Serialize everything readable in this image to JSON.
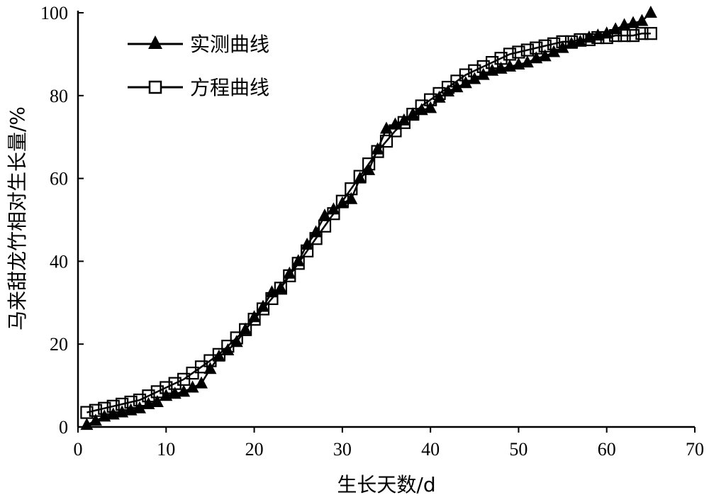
{
  "chart_data": {
    "type": "line",
    "xlabel": "生长天数/d",
    "ylabel": "马来甜龙竹相对生长量/%",
    "xlim": [
      0,
      70
    ],
    "ylim": [
      0,
      100
    ],
    "xticks": [
      "0",
      "10",
      "20",
      "30",
      "40",
      "50",
      "60",
      "70"
    ],
    "yticks": [
      "0",
      "20",
      "40",
      "60",
      "80",
      "100"
    ],
    "legend_position": "top-left",
    "grid": false,
    "series": [
      {
        "name": "实测曲线",
        "marker": "filled-triangle",
        "color": "#000000",
        "x": [
          1,
          2,
          3,
          4,
          5,
          6,
          7,
          8,
          9,
          10,
          11,
          12,
          13,
          14,
          15,
          16,
          17,
          18,
          19,
          20,
          21,
          22,
          23,
          24,
          25,
          26,
          27,
          28,
          29,
          30,
          31,
          32,
          33,
          34,
          35,
          36,
          37,
          38,
          39,
          40,
          41,
          42,
          43,
          44,
          45,
          46,
          47,
          48,
          49,
          50,
          51,
          52,
          53,
          54,
          55,
          56,
          57,
          58,
          59,
          60,
          61,
          62,
          63,
          64,
          65
        ],
        "values": [
          0.5,
          1.5,
          2.5,
          3,
          3.5,
          4,
          4.5,
          5.5,
          6,
          7.5,
          8,
          8.5,
          9.5,
          10.5,
          14,
          17,
          18.5,
          20.5,
          23.5,
          26.5,
          29,
          32.5,
          33.5,
          37,
          40,
          44,
          47,
          51,
          52.5,
          54,
          55,
          60,
          62,
          67,
          72,
          73,
          74,
          75.5,
          76.5,
          77,
          79.5,
          81,
          82,
          83,
          84,
          85,
          86,
          86.5,
          87,
          87.5,
          88,
          89,
          89.5,
          90.5,
          91.5,
          92.5,
          93,
          94,
          94.5,
          95,
          96,
          97,
          97.5,
          98,
          100
        ]
      },
      {
        "name": "方程曲线",
        "marker": "open-square",
        "color": "#000000",
        "x": [
          1,
          2,
          3,
          4,
          5,
          6,
          7,
          8,
          9,
          10,
          11,
          12,
          13,
          14,
          15,
          16,
          17,
          18,
          19,
          20,
          21,
          22,
          23,
          24,
          25,
          26,
          27,
          28,
          29,
          30,
          31,
          32,
          33,
          34,
          35,
          36,
          37,
          38,
          39,
          40,
          41,
          42,
          43,
          44,
          45,
          46,
          47,
          48,
          49,
          50,
          51,
          52,
          53,
          54,
          55,
          56,
          57,
          58,
          59,
          60,
          61,
          62,
          63,
          64,
          65
        ],
        "values": [
          3.5,
          4,
          4.5,
          5,
          5.5,
          6,
          6.5,
          7.5,
          8.5,
          9.5,
          10.5,
          11.5,
          13,
          14.5,
          16,
          17.5,
          19.5,
          21.5,
          23.5,
          26,
          28.5,
          31,
          33.5,
          36.5,
          39.5,
          42.5,
          45.5,
          48.5,
          51.5,
          54.5,
          57.5,
          60.5,
          63.5,
          66.5,
          69,
          71.5,
          73.5,
          75.5,
          77.5,
          79,
          80.5,
          82,
          83.5,
          85,
          86,
          87,
          88,
          89,
          90,
          90.5,
          91,
          91.5,
          92,
          92.5,
          93,
          93,
          93.5,
          93.5,
          94,
          94,
          94.5,
          94.5,
          94.5,
          95,
          95
        ]
      }
    ]
  }
}
